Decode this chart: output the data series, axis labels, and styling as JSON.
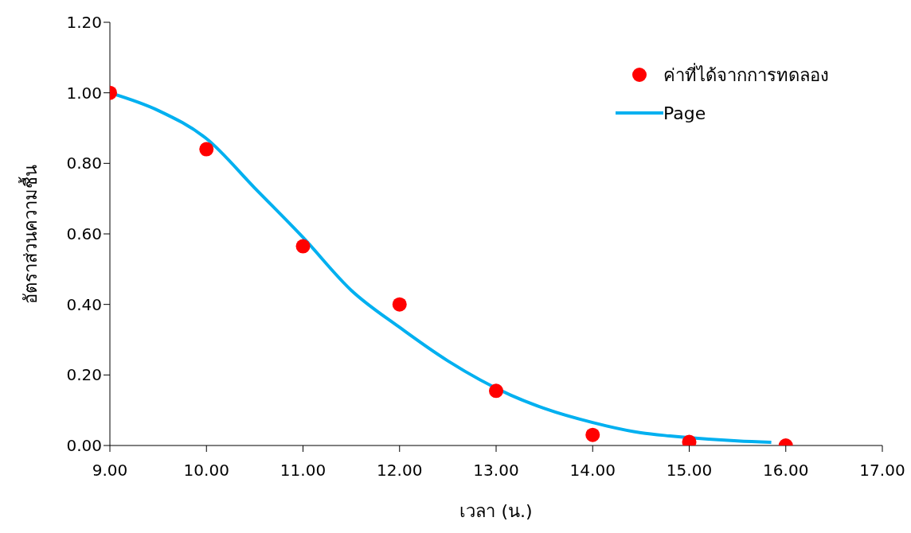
{
  "chart_data": {
    "type": "scatter",
    "xlabel": "เวลา (น.)",
    "ylabel": "อัตราส่วนความชื้น",
    "xlim": [
      9,
      17
    ],
    "xticks": [
      {
        "value": 9,
        "label": "9.00"
      },
      {
        "value": 10,
        "label": "10.00"
      },
      {
        "value": 11,
        "label": "11.00"
      },
      {
        "value": 12,
        "label": "12.00"
      },
      {
        "value": 13,
        "label": "13.00"
      },
      {
        "value": 14,
        "label": "14.00"
      },
      {
        "value": 15,
        "label": "15.00"
      },
      {
        "value": 16,
        "label": "16.00"
      },
      {
        "value": 17,
        "label": "17.00"
      }
    ],
    "ylim": [
      0,
      1.2
    ],
    "yticks": [
      {
        "value": 0,
        "label": "0.00"
      },
      {
        "value": 0.2,
        "label": "0.20"
      },
      {
        "value": 0.4,
        "label": "0.40"
      },
      {
        "value": 0.6,
        "label": "0.60"
      },
      {
        "value": 0.8,
        "label": "0.80"
      },
      {
        "value": 1,
        "label": "1.00"
      },
      {
        "value": 1.2,
        "label": "1.20"
      }
    ],
    "grid": false,
    "legend": "top right",
    "series": [
      {
        "name": "ค่าที่ได้จากการทดลอง",
        "marker": "circle",
        "color": "#ff0000",
        "x": [
          9,
          10,
          11,
          12,
          13,
          14,
          15,
          16
        ],
        "values": [
          1.0,
          0.84,
          0.565,
          0.4,
          0.155,
          0.03,
          0.01,
          0.0
        ]
      },
      {
        "name": "Page",
        "type": "line",
        "marker": "none",
        "line_style": "solid",
        "color": "#00b0f0",
        "x": [
          9,
          9.5,
          10,
          10.5,
          11,
          11.5,
          12,
          12.5,
          13.15,
          13.5,
          14,
          14.5,
          14.8,
          15.2,
          15.5,
          15.85
        ],
        "values": [
          1.0,
          0.95,
          0.87,
          0.73,
          0.59,
          0.44,
          0.335,
          0.24,
          0.143,
          0.105,
          0.065,
          0.036,
          0.027,
          0.018,
          0.013,
          0.009
        ]
      }
    ]
  }
}
